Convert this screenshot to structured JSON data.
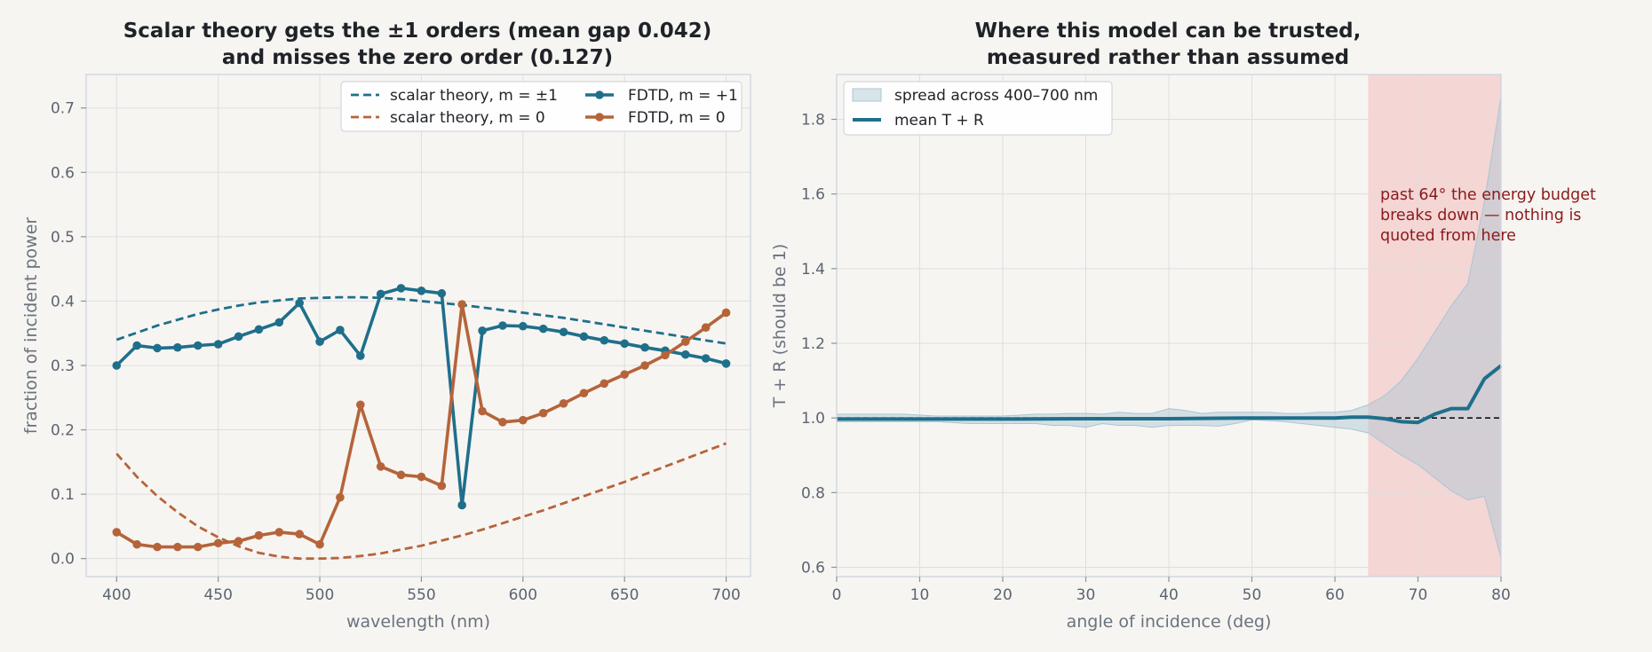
{
  "colors": {
    "blue": "#1f6f8b",
    "orange": "#b5643a",
    "band": "#a9c6d3",
    "bad_region": "#f2c9c9",
    "annotation": "#8b1a1a",
    "grid": "#dedede"
  },
  "chart_data": [
    {
      "type": "line",
      "title_lines": [
        "Scalar theory gets the ±1 orders (mean gap 0.042)",
        "and misses the zero order (0.127)"
      ],
      "xlabel": "wavelength (nm)",
      "ylabel": "fraction of incident power",
      "xlim": [
        385,
        712
      ],
      "ylim": [
        -0.028,
        0.752
      ],
      "xticks": [
        400,
        450,
        500,
        550,
        600,
        650,
        700
      ],
      "yticks": [
        0.0,
        0.1,
        0.2,
        0.3,
        0.4,
        0.5,
        0.6,
        0.7
      ],
      "ytick_labels": [
        "0.0",
        "0.1",
        "0.2",
        "0.3",
        "0.4",
        "0.5",
        "0.6",
        "0.7"
      ],
      "grid": true,
      "legend_position": "top-right",
      "series": [
        {
          "name": "scalar theory, m = ±1",
          "style": "dashed",
          "color_key": "blue",
          "markers": false,
          "x": [
            400,
            410,
            420,
            430,
            440,
            450,
            460,
            470,
            480,
            490,
            500,
            510,
            520,
            530,
            540,
            550,
            560,
            570,
            580,
            590,
            600,
            610,
            620,
            630,
            640,
            650,
            660,
            670,
            680,
            690,
            700
          ],
          "y": [
            0.34,
            0.351,
            0.362,
            0.371,
            0.38,
            0.387,
            0.393,
            0.398,
            0.401,
            0.404,
            0.405,
            0.406,
            0.406,
            0.405,
            0.403,
            0.4,
            0.397,
            0.394,
            0.39,
            0.386,
            0.382,
            0.378,
            0.374,
            0.369,
            0.364,
            0.359,
            0.354,
            0.349,
            0.344,
            0.339,
            0.334
          ]
        },
        {
          "name": "scalar theory, m = 0",
          "style": "dashed",
          "color_key": "orange",
          "markers": false,
          "x": [
            400,
            410,
            420,
            430,
            440,
            450,
            460,
            470,
            480,
            490,
            500,
            510,
            520,
            530,
            540,
            550,
            560,
            570,
            580,
            590,
            600,
            610,
            620,
            630,
            640,
            650,
            660,
            670,
            680,
            690,
            700
          ],
          "y": [
            0.163,
            0.127,
            0.097,
            0.072,
            0.05,
            0.033,
            0.019,
            0.009,
            0.003,
            0.0,
            0.0,
            0.001,
            0.004,
            0.008,
            0.014,
            0.02,
            0.028,
            0.036,
            0.045,
            0.055,
            0.065,
            0.075,
            0.086,
            0.097,
            0.108,
            0.119,
            0.131,
            0.143,
            0.155,
            0.167,
            0.179
          ]
        },
        {
          "name": "FDTD, m = +1",
          "style": "solid",
          "color_key": "blue",
          "markers": true,
          "x": [
            400,
            410,
            420,
            430,
            440,
            450,
            460,
            470,
            480,
            490,
            500,
            510,
            520,
            530,
            540,
            550,
            560,
            570,
            580,
            590,
            600,
            610,
            620,
            630,
            640,
            650,
            660,
            670,
            680,
            690,
            700
          ],
          "y": [
            0.3,
            0.331,
            0.327,
            0.328,
            0.331,
            0.333,
            0.345,
            0.356,
            0.367,
            0.397,
            0.337,
            0.355,
            0.315,
            0.411,
            0.42,
            0.416,
            0.412,
            0.083,
            0.354,
            0.362,
            0.361,
            0.357,
            0.352,
            0.345,
            0.339,
            0.334,
            0.328,
            0.323,
            0.317,
            0.311,
            0.303
          ]
        },
        {
          "name": "FDTD, m = 0",
          "style": "solid",
          "color_key": "orange",
          "markers": true,
          "x": [
            400,
            410,
            420,
            430,
            440,
            450,
            460,
            470,
            480,
            490,
            500,
            510,
            520,
            530,
            540,
            550,
            560,
            570,
            580,
            590,
            600,
            610,
            620,
            630,
            640,
            650,
            660,
            670,
            680,
            690,
            700
          ],
          "y": [
            0.041,
            0.022,
            0.018,
            0.018,
            0.018,
            0.024,
            0.027,
            0.036,
            0.041,
            0.038,
            0.022,
            0.095,
            0.239,
            0.143,
            0.13,
            0.127,
            0.113,
            0.395,
            0.229,
            0.212,
            0.215,
            0.226,
            0.241,
            0.257,
            0.272,
            0.286,
            0.3,
            0.316,
            0.337,
            0.359,
            0.382
          ]
        }
      ]
    },
    {
      "type": "area",
      "title_lines": [
        "Where this model can be trusted,",
        "measured rather than assumed"
      ],
      "xlabel": "angle of incidence (deg)",
      "ylabel": "T + R  (should be 1)",
      "xlim": [
        0,
        80
      ],
      "ylim": [
        0.575,
        1.92
      ],
      "xticks": [
        0,
        10,
        20,
        30,
        40,
        50,
        60,
        70,
        80
      ],
      "yticks": [
        0.6,
        0.8,
        1.0,
        1.2,
        1.4,
        1.6,
        1.8
      ],
      "ytick_labels": [
        "0.6",
        "0.8",
        "1.0",
        "1.2",
        "1.4",
        "1.6",
        "1.8"
      ],
      "grid": true,
      "legend_position": "top-left",
      "reference_line_y": 1.0,
      "bad_region": [
        64,
        80
      ],
      "annotation_lines": [
        "past 64° the energy budget",
        "breaks down — nothing is",
        "quoted from here"
      ],
      "band": {
        "name": "spread across 400–700 nm",
        "x": [
          0,
          4,
          8,
          12,
          16,
          20,
          24,
          26,
          28,
          30,
          32,
          34,
          36,
          38,
          40,
          42,
          44,
          46,
          48,
          50,
          52,
          54,
          56,
          58,
          60,
          62,
          64,
          66,
          68,
          70,
          72,
          74,
          76,
          78,
          80
        ],
        "lower": [
          0.99,
          0.99,
          0.99,
          0.99,
          0.985,
          0.985,
          0.985,
          0.98,
          0.98,
          0.975,
          0.985,
          0.98,
          0.98,
          0.975,
          0.98,
          0.98,
          0.98,
          0.978,
          0.985,
          0.995,
          0.993,
          0.99,
          0.985,
          0.98,
          0.975,
          0.97,
          0.96,
          0.93,
          0.9,
          0.875,
          0.84,
          0.805,
          0.78,
          0.79,
          0.625
        ],
        "upper": [
          1.01,
          1.01,
          1.01,
          1.005,
          1.005,
          1.005,
          1.01,
          1.01,
          1.012,
          1.012,
          1.01,
          1.015,
          1.012,
          1.012,
          1.025,
          1.02,
          1.012,
          1.015,
          1.015,
          1.015,
          1.015,
          1.012,
          1.012,
          1.015,
          1.015,
          1.02,
          1.035,
          1.06,
          1.1,
          1.16,
          1.23,
          1.3,
          1.36,
          1.58,
          1.86
        ]
      },
      "mean": {
        "name": "mean T + R",
        "x": [
          0,
          10,
          20,
          30,
          40,
          50,
          60,
          62,
          64,
          66,
          68,
          70,
          72,
          74,
          76,
          78,
          80
        ],
        "y": [
          0.997,
          0.997,
          0.997,
          0.998,
          0.998,
          1.0,
          1.0,
          1.002,
          1.002,
          0.998,
          0.99,
          0.988,
          1.01,
          1.025,
          1.025,
          1.105,
          1.14
        ]
      }
    }
  ]
}
